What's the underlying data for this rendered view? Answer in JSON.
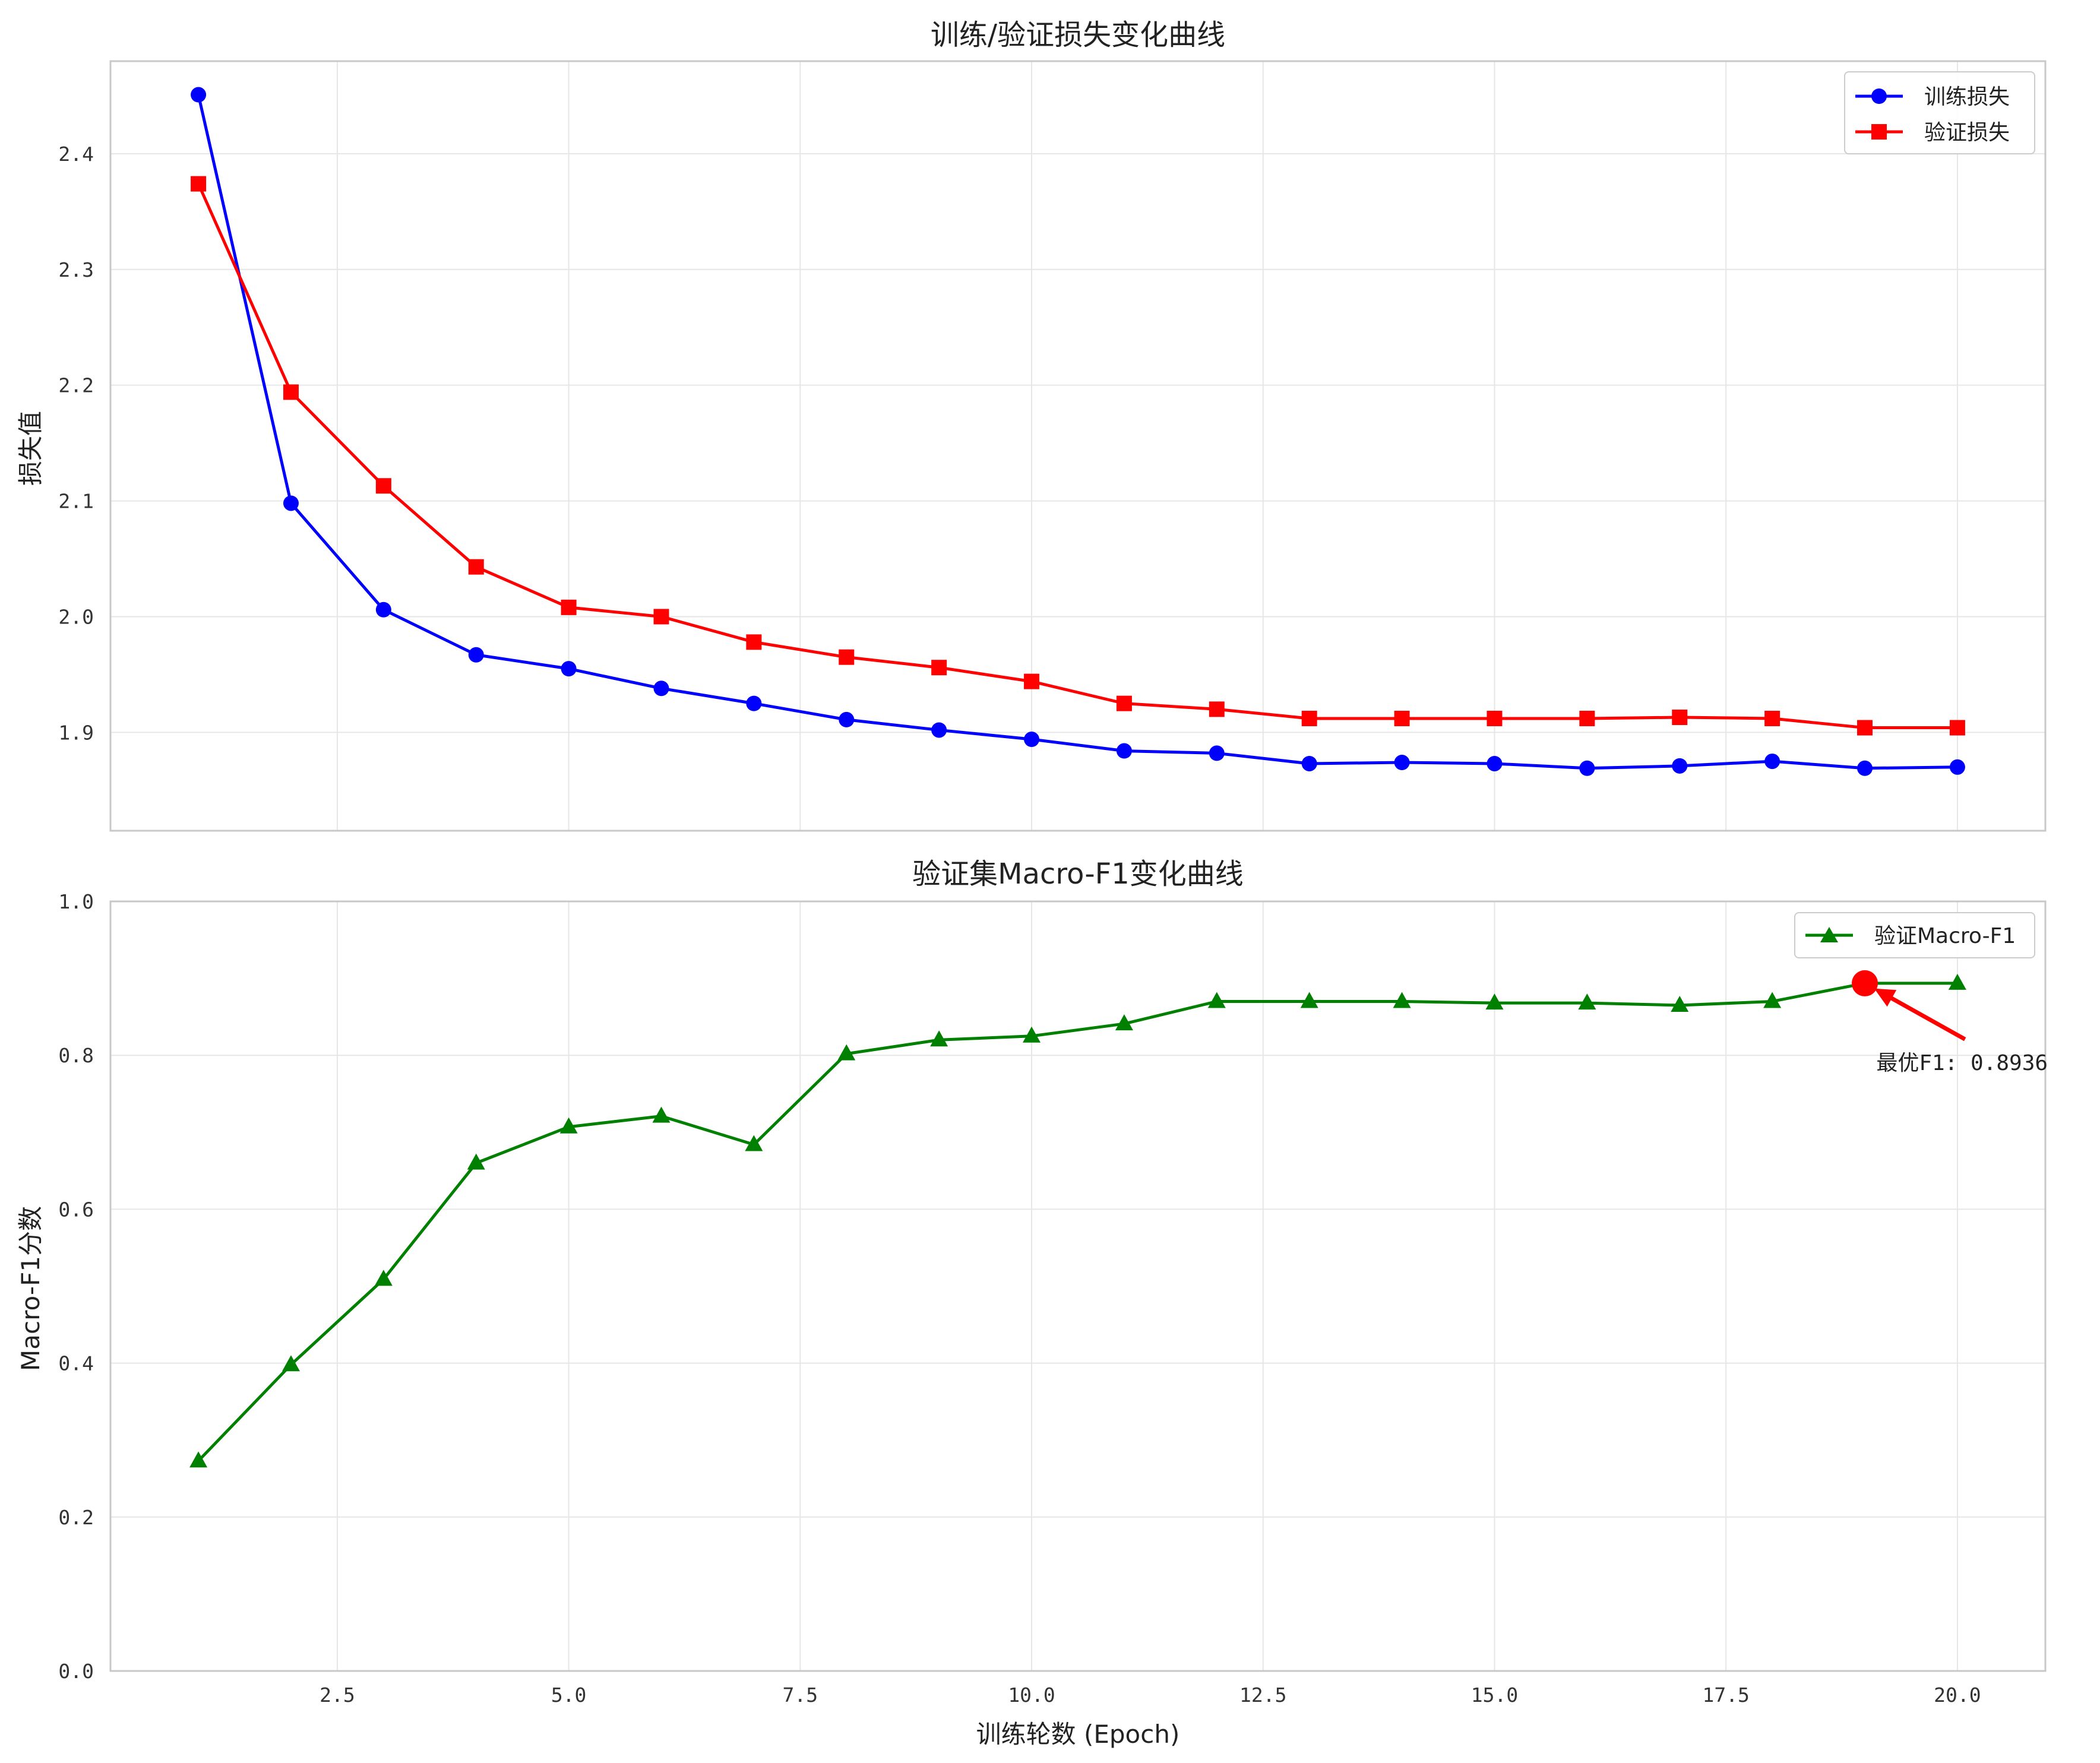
{
  "chart_data": [
    {
      "type": "line",
      "title": "训练/验证损失变化曲线",
      "xlabel": "",
      "ylabel": "损失值",
      "xlim": [
        0.05,
        20.95
      ],
      "ylim": [
        1.815,
        2.48
      ],
      "xticks": [
        2.5,
        5.0,
        7.5,
        10.0,
        12.5,
        15.0,
        17.5,
        20.0
      ],
      "xtick_labels": [],
      "yticks": [
        1.9,
        2.0,
        2.1,
        2.2,
        2.3,
        2.4
      ],
      "ytick_labels": [
        "1.9",
        "2.0",
        "2.1",
        "2.2",
        "2.3",
        "2.4"
      ],
      "grid": true,
      "legend": "top-right",
      "x": [
        1,
        2,
        3,
        4,
        5,
        6,
        7,
        8,
        9,
        10,
        11,
        12,
        13,
        14,
        15,
        16,
        17,
        18,
        19,
        20
      ],
      "series": [
        {
          "name": "训练损失",
          "color": "#0000ff",
          "marker": "circle",
          "values": [
            2.451,
            2.098,
            2.006,
            1.967,
            1.955,
            1.938,
            1.925,
            1.911,
            1.902,
            1.894,
            1.884,
            1.882,
            1.873,
            1.874,
            1.873,
            1.869,
            1.871,
            1.875,
            1.869,
            1.87
          ]
        },
        {
          "name": "验证损失",
          "color": "#ff0000",
          "marker": "square",
          "values": [
            2.374,
            2.194,
            2.113,
            2.043,
            2.008,
            2.0,
            1.978,
            1.965,
            1.956,
            1.944,
            1.925,
            1.92,
            1.912,
            1.912,
            1.912,
            1.912,
            1.913,
            1.912,
            1.904,
            1.904
          ]
        }
      ]
    },
    {
      "type": "line",
      "title": "验证集Macro-F1变化曲线",
      "xlabel": "训练轮数 (Epoch)",
      "ylabel": "Macro-F1分数",
      "xlim": [
        0.05,
        20.95
      ],
      "ylim": [
        0.0,
        1.0
      ],
      "xticks": [
        2.5,
        5.0,
        7.5,
        10.0,
        12.5,
        15.0,
        17.5,
        20.0
      ],
      "xtick_labels": [
        "2.5",
        "5.0",
        "7.5",
        "10.0",
        "12.5",
        "15.0",
        "17.5",
        "20.0"
      ],
      "yticks": [
        0.0,
        0.2,
        0.4,
        0.6,
        0.8,
        1.0
      ],
      "ytick_labels": [
        "0.0",
        "0.2",
        "0.4",
        "0.6",
        "0.8",
        "1.0"
      ],
      "grid": true,
      "legend": "top-right",
      "x": [
        1,
        2,
        3,
        4,
        5,
        6,
        7,
        8,
        9,
        10,
        11,
        12,
        13,
        14,
        15,
        16,
        17,
        18,
        19,
        20
      ],
      "series": [
        {
          "name": "验证Macro-F1",
          "color": "#008000",
          "marker": "triangle",
          "values": [
            0.273,
            0.398,
            0.509,
            0.66,
            0.707,
            0.721,
            0.684,
            0.802,
            0.82,
            0.825,
            0.841,
            0.87,
            0.87,
            0.87,
            0.868,
            0.868,
            0.865,
            0.87,
            0.8936,
            0.8936
          ]
        }
      ],
      "annotation": {
        "text": "最优F1: 0.8936",
        "x": 19,
        "y": 0.8936,
        "text_x": 20.05,
        "text_y": 0.79,
        "color": "#ff0000"
      }
    }
  ]
}
